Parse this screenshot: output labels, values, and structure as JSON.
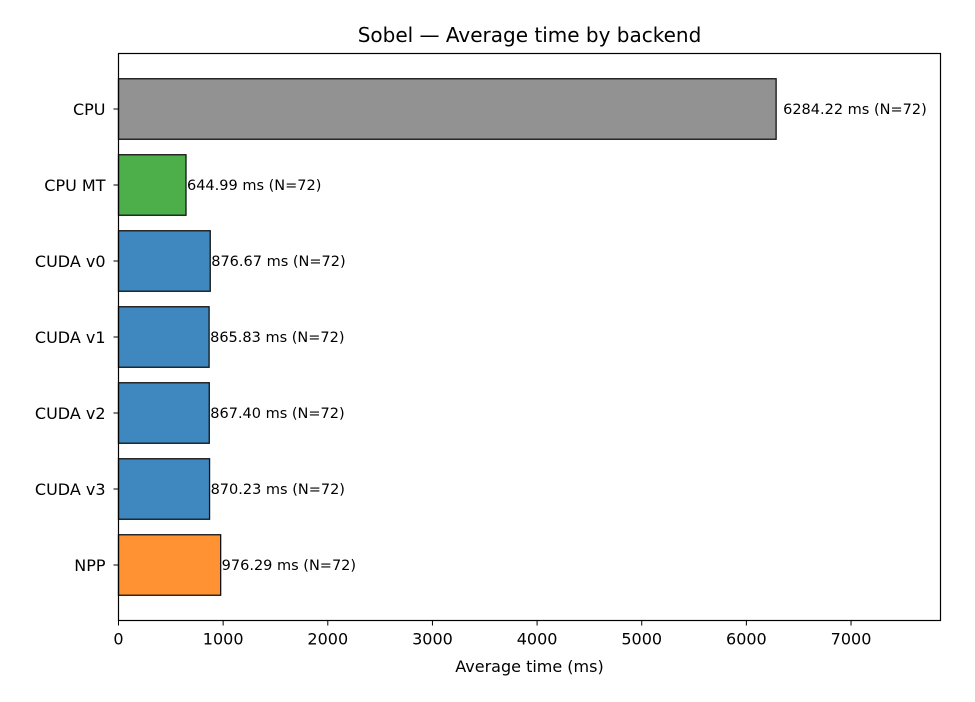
{
  "chart_data": {
    "type": "bar",
    "orientation": "horizontal",
    "title": "Sobel — Average time by backend",
    "xlabel": "Average time (ms)",
    "ylabel": "",
    "xlim": [
      0,
      7855
    ],
    "x_ticks": [
      0,
      1000,
      2000,
      3000,
      4000,
      5000,
      6000,
      7000
    ],
    "grid": false,
    "categories": [
      "CPU",
      "CPU MT",
      "CUDA v0",
      "CUDA v1",
      "CUDA v2",
      "CUDA v3",
      "NPP"
    ],
    "values": [
      6284.22,
      644.99,
      876.67,
      865.83,
      867.4,
      870.23,
      976.29
    ],
    "labels": [
      "6284.22 ms  (N=72)",
      "644.99 ms  (N=72)",
      "876.67 ms  (N=72)",
      "865.83 ms  (N=72)",
      "867.40 ms  (N=72)",
      "870.23 ms  (N=72)",
      "976.29 ms  (N=72)"
    ],
    "colors": [
      "#929292",
      "#4daf4a",
      "#3f88bf",
      "#3f88bf",
      "#3f88bf",
      "#3f88bf",
      "#ff9233"
    ]
  }
}
